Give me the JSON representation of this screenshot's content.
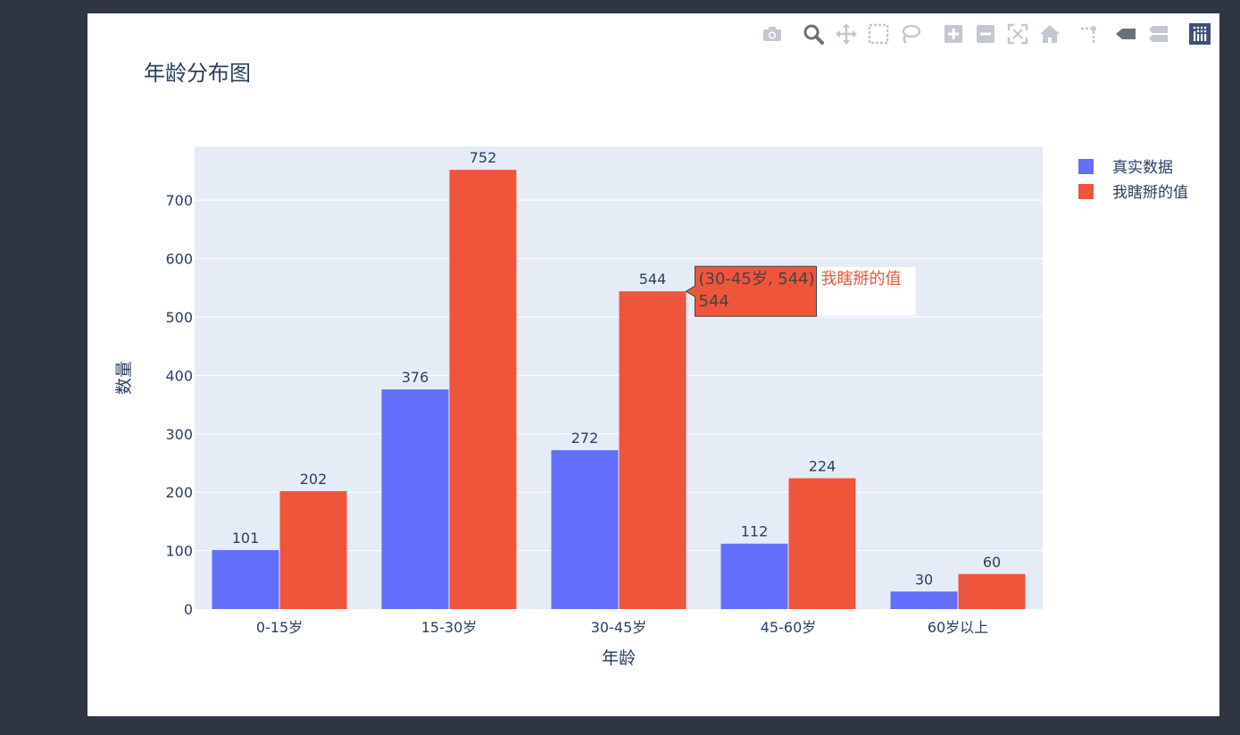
{
  "toolbar": {
    "icons": [
      "camera-icon",
      "zoom-icon",
      "pan-icon",
      "box-select-icon",
      "lasso-icon",
      "zoom-in-icon",
      "zoom-out-icon",
      "autoscale-icon",
      "reset-axes-icon",
      "spike-lines-icon",
      "hover-closest-icon",
      "hover-compare-icon",
      "plotly-logo-icon"
    ]
  },
  "chart_data": {
    "type": "bar",
    "title": "年龄分布图",
    "xlabel": "年龄",
    "ylabel": "数量",
    "categories": [
      "0-15岁",
      "15-30岁",
      "30-45岁",
      "45-60岁",
      "60岁以上"
    ],
    "series": [
      {
        "name": "真实数据",
        "values": [
          101,
          376,
          272,
          112,
          30
        ],
        "color": "#636efa"
      },
      {
        "name": "我瞎掰的值",
        "values": [
          202,
          752,
          544,
          224,
          60
        ],
        "color": "#ef553b"
      }
    ],
    "ylim": [
      0,
      792
    ],
    "yticks": [
      0,
      100,
      200,
      300,
      400,
      500,
      600,
      700
    ],
    "grid": true,
    "legend_position": "top-right",
    "plot_bgcolor": "#e5ecf6",
    "hover": {
      "series_index": 1,
      "category_index": 2,
      "line1": "(30-45岁, 544)",
      "line2": "544",
      "series_name": "我瞎掰的值"
    }
  }
}
